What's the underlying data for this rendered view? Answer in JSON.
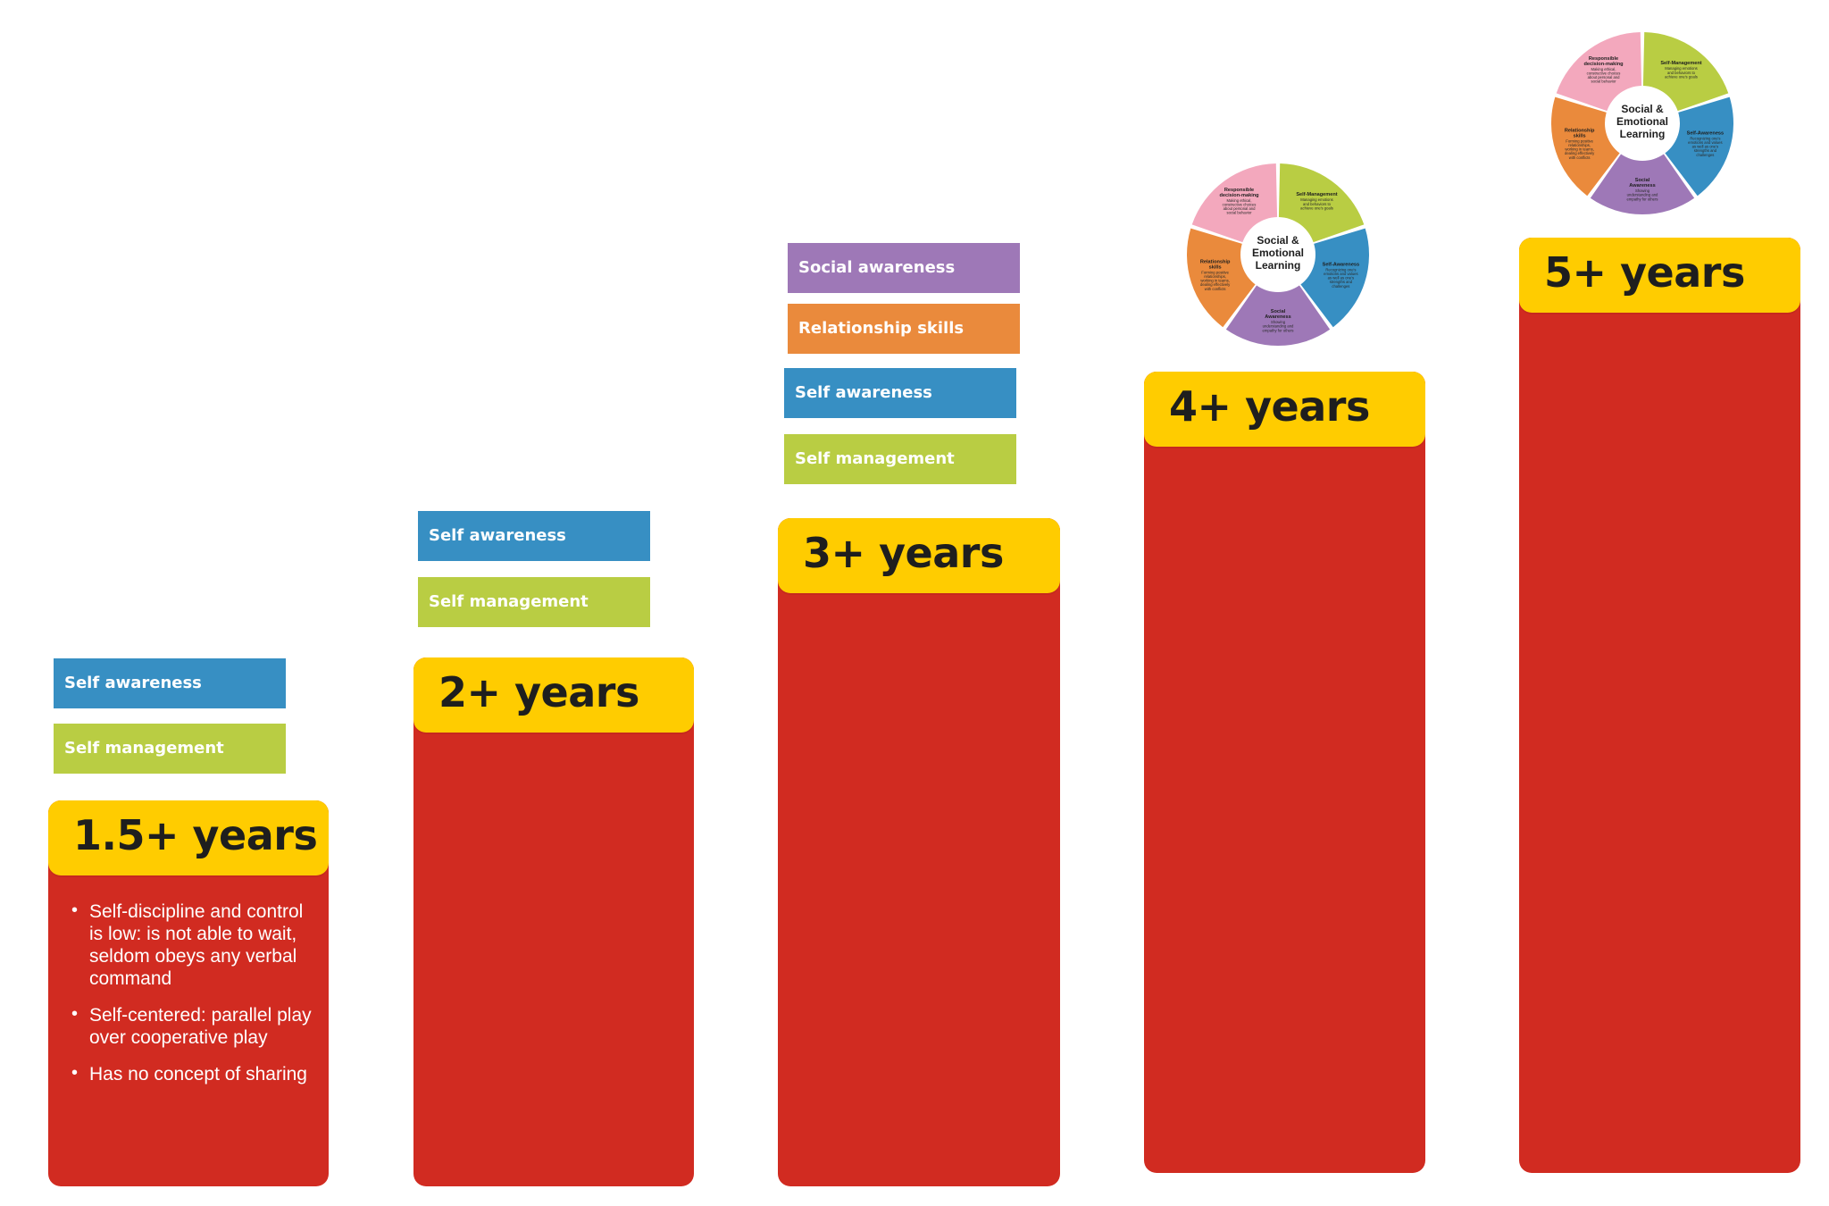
{
  "stages": [
    {
      "label": "1.5+ years",
      "tags": [
        "Self awareness",
        "Self management"
      ],
      "bullets": [
        "Self-discipline and control is low: is not able to wait, seldom obeys any verbal command",
        "Self-centered: parallel play over cooperative play",
        "Has no concept of sharing"
      ]
    },
    {
      "label": "2+ years",
      "tags": [
        "Self awareness",
        "Self management"
      ]
    },
    {
      "label": "3+ years",
      "tags": [
        "Social awareness",
        "Relationship skills",
        "Self awareness",
        "Self management"
      ]
    },
    {
      "label": "4+ years"
    },
    {
      "label": "5+ years"
    }
  ],
  "sel_wheel": {
    "center": [
      "Social &",
      "Emotional",
      "Learning"
    ],
    "segments": [
      {
        "title": "Self-Management",
        "desc": "Managing emotions and behaviors to achieve one's goals",
        "color": "#b9cd43"
      },
      {
        "title": "Self-Awareness",
        "desc": "Recognizing one's emotions and values as well as one's strengths and challenges",
        "color": "#378fc3"
      },
      {
        "title": "Social Awareness",
        "desc": "Showing understanding and empathy for others",
        "color": "#9e78b7"
      },
      {
        "title": "Relationship skills",
        "desc": "Forming positive relationships, working in teams, dealing effectively with conflicts",
        "color": "#ea8a3c"
      },
      {
        "title": "Responsible decision-making",
        "desc": "Making ethical, constructive choices about personal and social behavior",
        "color": "#f3a8bd"
      }
    ]
  },
  "colors": {
    "bar": "#d12b21",
    "header": "#ffcc00",
    "self_awareness": "#378fc3",
    "self_management": "#b9cd43",
    "social_awareness": "#9e78b7",
    "relationship_skills": "#ea8a3c"
  }
}
